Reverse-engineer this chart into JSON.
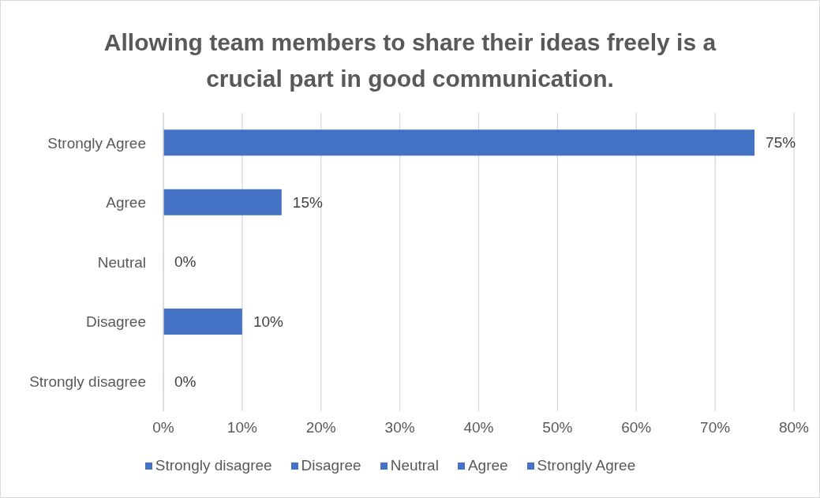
{
  "chart_data": {
    "type": "bar",
    "orientation": "horizontal",
    "stacked": true,
    "title": "Allowing team members to share their ideas freely is a crucial part in good communication.",
    "categories": [
      "Strongly Agree",
      "Agree",
      "Neutral",
      "Disagree",
      "Strongly disagree"
    ],
    "series": [
      {
        "name": "Strongly disagree",
        "color": "#4472c4",
        "values": [
          null,
          null,
          null,
          null,
          0
        ],
        "value_labels": [
          null,
          null,
          null,
          null,
          "0%"
        ]
      },
      {
        "name": "Disagree",
        "color": "#4472c4",
        "values": [
          null,
          null,
          null,
          10,
          null
        ],
        "value_labels": [
          null,
          null,
          null,
          "10%",
          null
        ]
      },
      {
        "name": "Neutral",
        "color": "#4472c4",
        "values": [
          null,
          null,
          0,
          null,
          null
        ],
        "value_labels": [
          null,
          null,
          "0%",
          null,
          null
        ]
      },
      {
        "name": "Agree",
        "color": "#4472c4",
        "values": [
          null,
          15,
          null,
          null,
          null
        ],
        "value_labels": [
          null,
          "15%",
          null,
          null,
          null
        ]
      },
      {
        "name": "Strongly Agree",
        "color": "#4472c4",
        "values": [
          75,
          null,
          null,
          null,
          null
        ],
        "value_labels": [
          "75%",
          null,
          null,
          null,
          null
        ]
      }
    ],
    "xlim": [
      0,
      80
    ],
    "xticks": [
      {
        "value": 0,
        "label": "0%"
      },
      {
        "value": 10,
        "label": "10%"
      },
      {
        "value": 20,
        "label": "20%"
      },
      {
        "value": 30,
        "label": "30%"
      },
      {
        "value": 40,
        "label": "40%"
      },
      {
        "value": 50,
        "label": "50%"
      },
      {
        "value": 60,
        "label": "60%"
      },
      {
        "value": 70,
        "label": "70%"
      },
      {
        "value": 80,
        "label": "80%"
      }
    ],
    "grid": "x",
    "legend": "bottom"
  }
}
